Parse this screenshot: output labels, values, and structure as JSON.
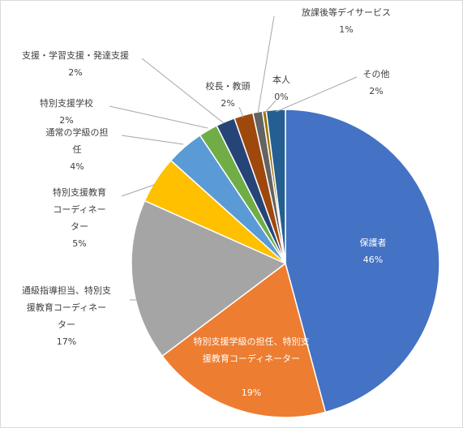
{
  "chart_data": {
    "type": "pie",
    "title": "",
    "slices": [
      {
        "label": "保護者",
        "value": 46,
        "value_label": "46%",
        "color": "#4472c4"
      },
      {
        "label": "特別支援学級の担任、特別支援教育コーディネーター",
        "value": 19,
        "value_label": "19%",
        "color": "#ed7d31"
      },
      {
        "label": "通級指導担当、特別支援教育コーディネーター",
        "value": 17,
        "value_label": "17%",
        "color": "#a5a5a5"
      },
      {
        "label": "特別支援教育コーディネーター",
        "value": 5,
        "value_label": "5%",
        "color": "#ffc000"
      },
      {
        "label": "通常の学級の担任",
        "value": 4,
        "value_label": "4%",
        "color": "#5b9bd5"
      },
      {
        "label": "特別支援学校",
        "value": 2,
        "value_label": "2%",
        "color": "#70ad47"
      },
      {
        "label": "支援・学習支援・発達支援",
        "value": 2,
        "value_label": "2%",
        "color": "#264478"
      },
      {
        "label": "校長・教頭",
        "value": 2,
        "value_label": "2%",
        "color": "#9e480e"
      },
      {
        "label": "放課後等デイサービス",
        "value": 1,
        "value_label": "1%",
        "color": "#636363"
      },
      {
        "label": "本人",
        "value": 0.4,
        "value_label": "0%",
        "color": "#997300"
      },
      {
        "label": "その他",
        "value": 2,
        "value_label": "2%",
        "color": "#255e91"
      }
    ],
    "legend": "none",
    "grid": false
  }
}
